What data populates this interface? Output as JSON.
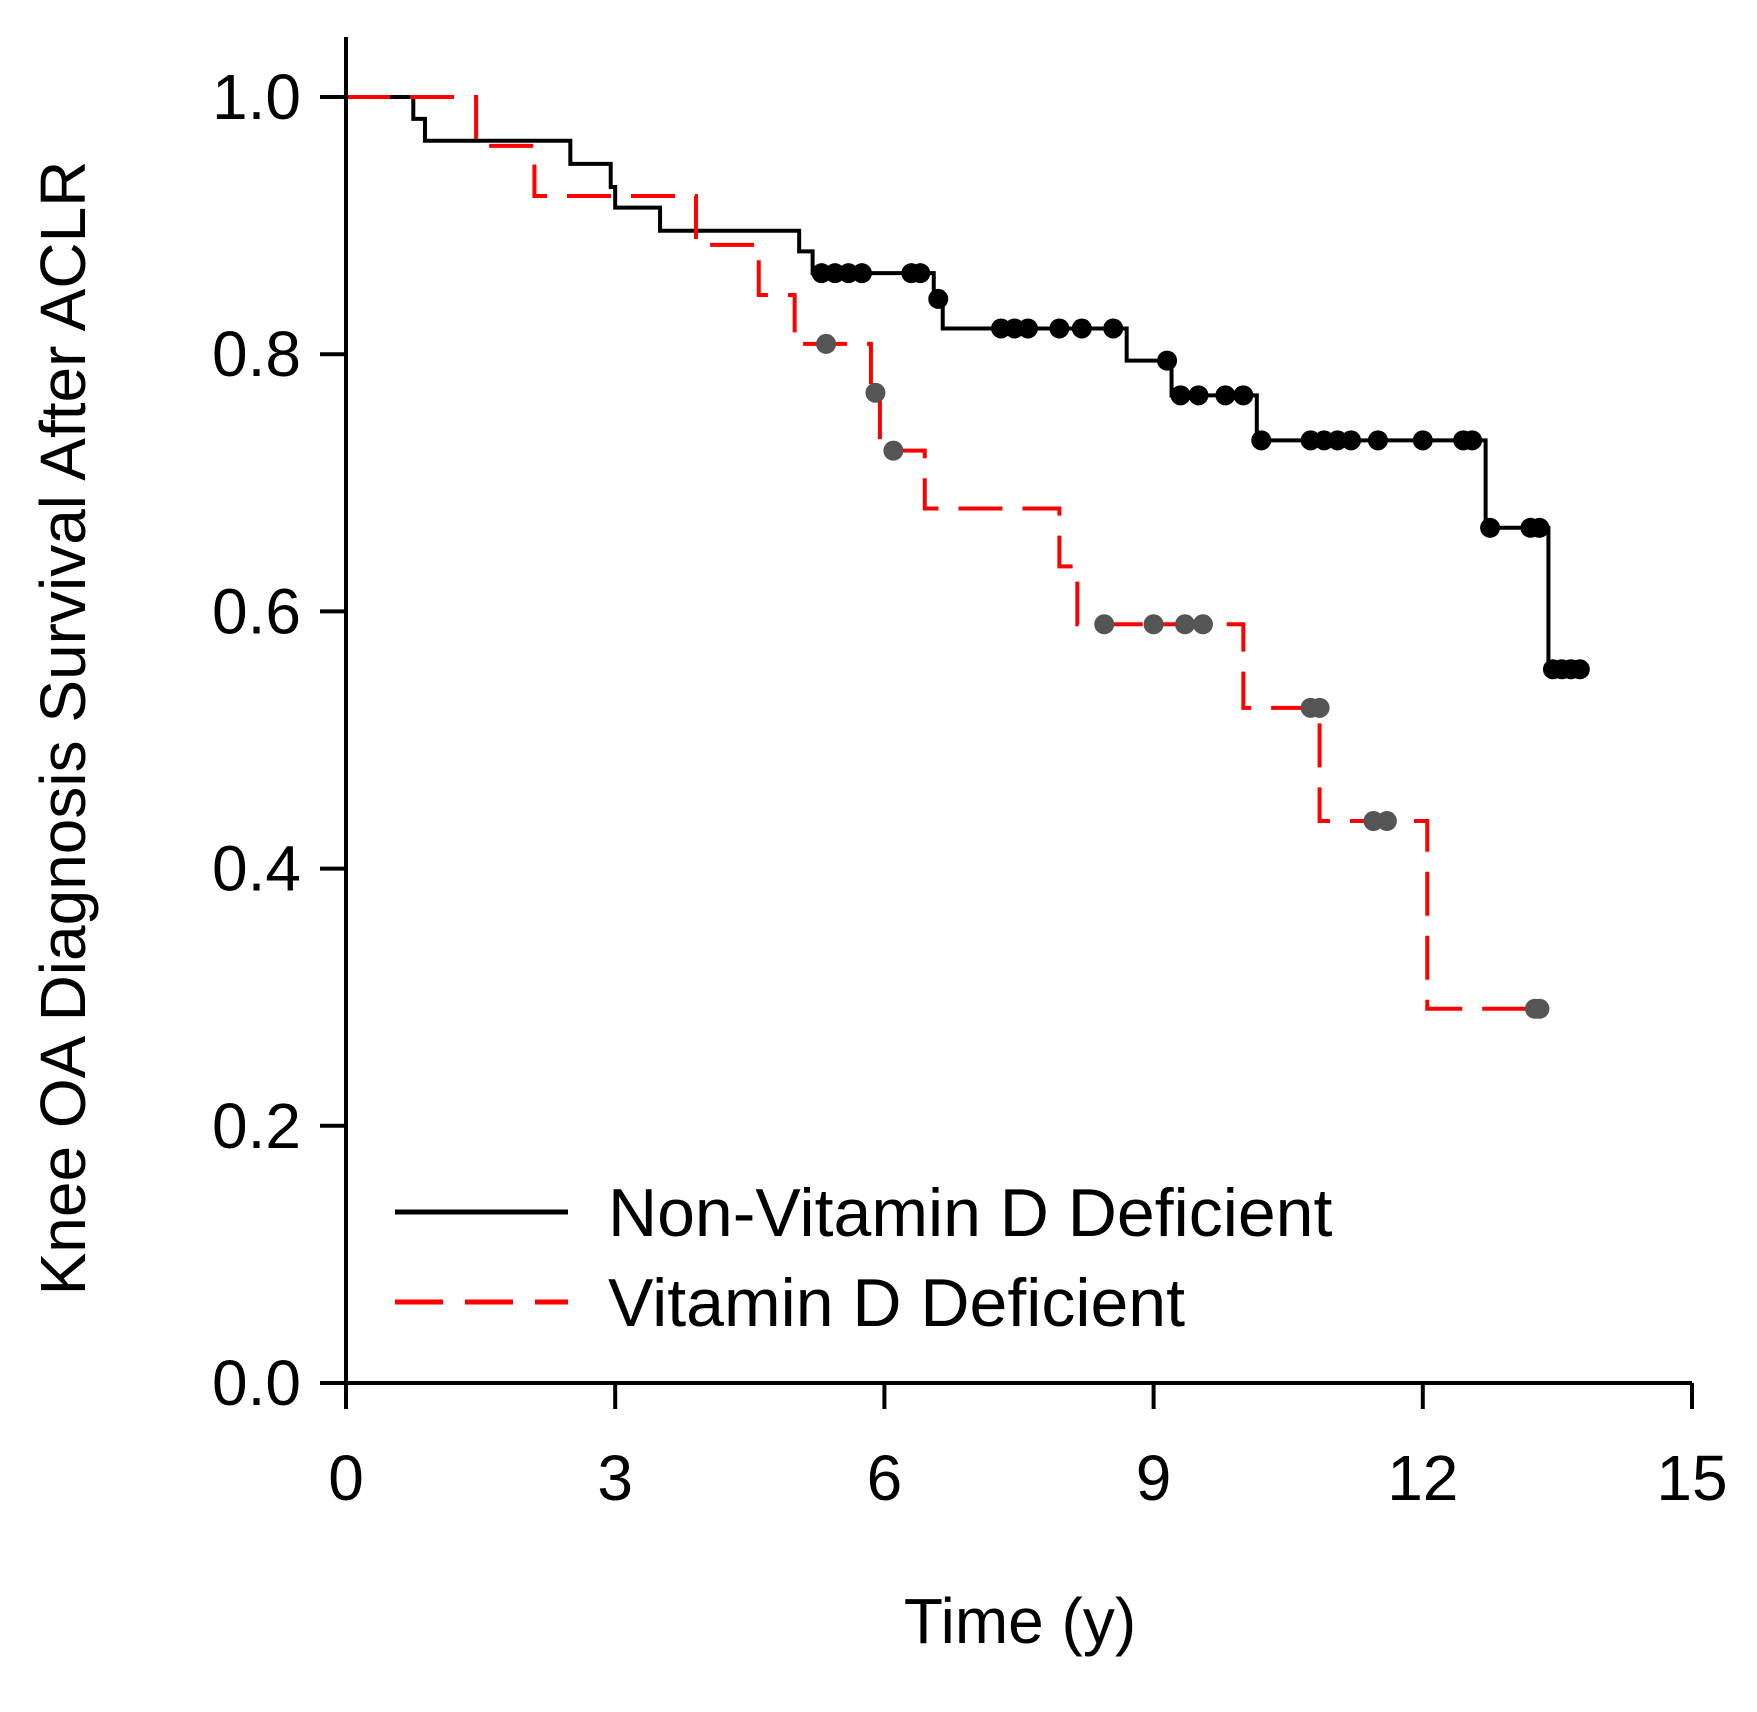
{
  "chart_data": {
    "type": "line",
    "subtype": "kaplan-meier step",
    "title": "",
    "xlabel": "Time (y)",
    "ylabel": "Knee OA Diagnosis Survival After ACLR",
    "xlim": [
      0,
      15
    ],
    "ylim": [
      0.0,
      1.05
    ],
    "xticks": [
      0,
      3,
      6,
      9,
      12,
      15
    ],
    "xtick_labels": [
      "0",
      "3",
      "6",
      "9",
      "12",
      "15"
    ],
    "yticks": [
      0.0,
      0.2,
      0.4,
      0.6,
      0.8,
      1.0
    ],
    "ytick_labels": [
      "0.0",
      "0.2",
      "0.4",
      "0.6",
      "0.8",
      "1.0"
    ],
    "grid": false,
    "legend_position": "bottom-left",
    "series": [
      {
        "name": "Non-Vitamin D Deficient",
        "color": "#000000",
        "line_style": "solid",
        "steps": [
          [
            0,
            1.0
          ],
          [
            0.75,
            0.983
          ],
          [
            0.88,
            0.966
          ],
          [
            2.5,
            0.948
          ],
          [
            2.95,
            0.93
          ],
          [
            3.0,
            0.914
          ],
          [
            3.5,
            0.896
          ],
          [
            5.05,
            0.88
          ],
          [
            5.2,
            0.863
          ],
          [
            6.55,
            0.843
          ],
          [
            6.65,
            0.82
          ],
          [
            8.7,
            0.795
          ],
          [
            9.2,
            0.768
          ],
          [
            10.15,
            0.733
          ],
          [
            12.7,
            0.665
          ],
          [
            13.4,
            0.555
          ],
          [
            13.8,
            0.555
          ]
        ],
        "censored": [
          [
            5.3,
            0.863
          ],
          [
            5.45,
            0.863
          ],
          [
            5.6,
            0.863
          ],
          [
            5.75,
            0.863
          ],
          [
            6.3,
            0.863
          ],
          [
            6.4,
            0.863
          ],
          [
            6.6,
            0.843
          ],
          [
            7.3,
            0.82
          ],
          [
            7.45,
            0.82
          ],
          [
            7.6,
            0.82
          ],
          [
            7.95,
            0.82
          ],
          [
            8.2,
            0.82
          ],
          [
            8.55,
            0.82
          ],
          [
            9.15,
            0.795
          ],
          [
            9.3,
            0.768
          ],
          [
            9.5,
            0.768
          ],
          [
            9.8,
            0.768
          ],
          [
            10.0,
            0.768
          ],
          [
            10.2,
            0.733
          ],
          [
            10.75,
            0.733
          ],
          [
            10.9,
            0.733
          ],
          [
            11.05,
            0.733
          ],
          [
            11.2,
            0.733
          ],
          [
            11.5,
            0.733
          ],
          [
            12.0,
            0.733
          ],
          [
            12.45,
            0.733
          ],
          [
            12.55,
            0.733
          ],
          [
            12.75,
            0.665
          ],
          [
            13.2,
            0.665
          ],
          [
            13.3,
            0.665
          ],
          [
            13.45,
            0.555
          ],
          [
            13.55,
            0.555
          ],
          [
            13.65,
            0.555
          ],
          [
            13.75,
            0.555
          ]
        ]
      },
      {
        "name": "Vitamin D Deficient",
        "color": "#ff0000",
        "line_style": "dashed",
        "steps": [
          [
            0,
            1.0
          ],
          [
            1.45,
            0.962
          ],
          [
            2.1,
            0.923
          ],
          [
            3.9,
            0.885
          ],
          [
            4.6,
            0.846
          ],
          [
            5.0,
            0.808
          ],
          [
            5.85,
            0.77
          ],
          [
            5.95,
            0.725
          ],
          [
            6.45,
            0.68
          ],
          [
            7.95,
            0.635
          ],
          [
            8.15,
            0.59
          ],
          [
            10.0,
            0.525
          ],
          [
            10.85,
            0.437
          ],
          [
            12.05,
            0.291
          ],
          [
            13.3,
            0.291
          ]
        ],
        "censor_color": "#555555",
        "censored": [
          [
            5.35,
            0.808
          ],
          [
            5.9,
            0.77
          ],
          [
            6.1,
            0.725
          ],
          [
            8.45,
            0.59
          ],
          [
            9.0,
            0.59
          ],
          [
            9.35,
            0.59
          ],
          [
            9.55,
            0.59
          ],
          [
            10.75,
            0.525
          ],
          [
            10.85,
            0.525
          ],
          [
            11.45,
            0.437
          ],
          [
            11.6,
            0.437
          ],
          [
            13.25,
            0.291
          ],
          [
            13.3,
            0.291
          ]
        ]
      }
    ]
  }
}
